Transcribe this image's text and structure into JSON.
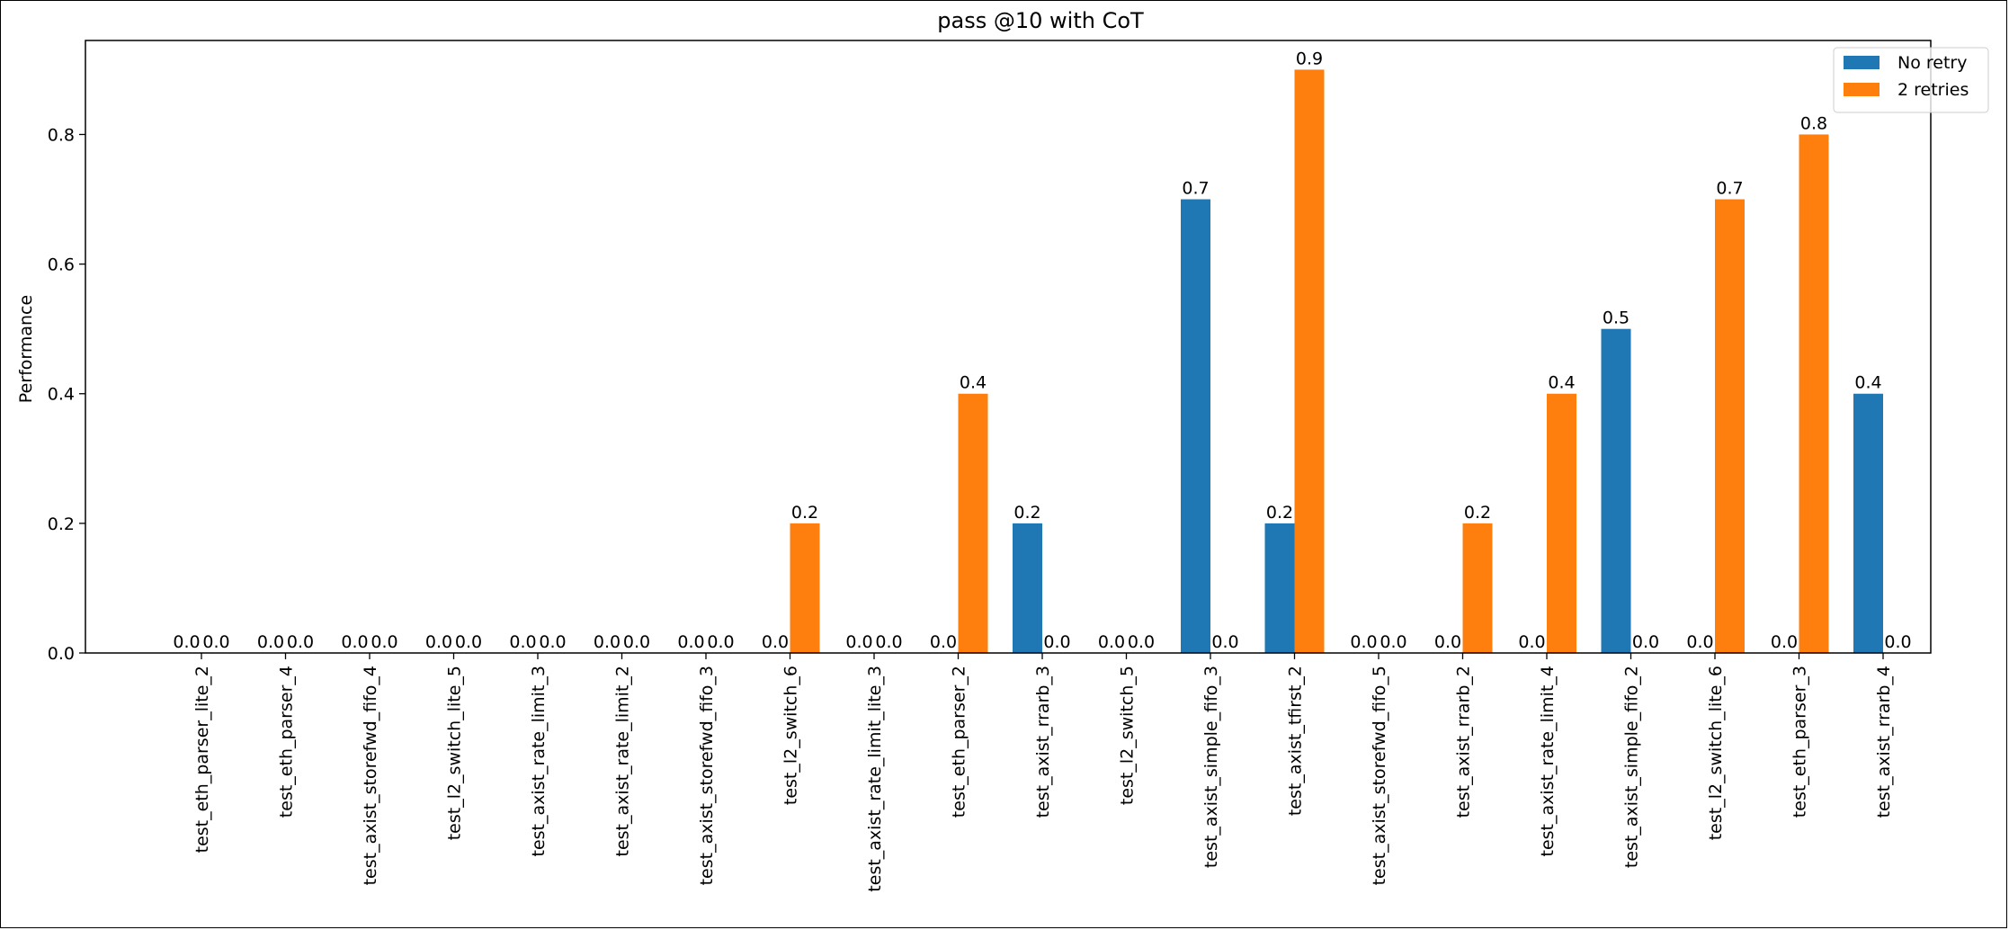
{
  "chart_data": {
    "type": "bar",
    "title": "pass @10 with CoT",
    "xlabel": "",
    "ylabel": "Performance",
    "ylim": [
      0.0,
      0.945
    ],
    "yticks": [
      "0.0",
      "0.2",
      "0.4",
      "0.6",
      "0.8"
    ],
    "grid": false,
    "legend_position": "top-right",
    "categories": [
      "test_eth_parser_lite_2",
      "test_eth_parser_4",
      "test_axist_storefwd_fifo_4",
      "test_l2_switch_lite_5",
      "test_axist_rate_limit_3",
      "test_axist_rate_limit_2",
      "test_axist_storefwd_fifo_3",
      "test_l2_switch_6",
      "test_axist_rate_limit_lite_3",
      "test_eth_parser_2",
      "test_axist_rrarb_3",
      "test_l2_switch_5",
      "test_axist_simple_fifo_3",
      "test_axist_tfirst_2",
      "test_axist_storefwd_fifo_5",
      "test_axist_rrarb_2",
      "test_axist_rate_limit_4",
      "test_axist_simple_fifo_2",
      "test_l2_switch_lite_6",
      "test_eth_parser_3",
      "test_axist_rrarb_4"
    ],
    "series": [
      {
        "name": "No retry",
        "color": "#1f77b4",
        "values": [
          0.0,
          0.0,
          0.0,
          0.0,
          0.0,
          0.0,
          0.0,
          0.0,
          0.0,
          0.0,
          0.2,
          0.0,
          0.7,
          0.2,
          0.0,
          0.0,
          0.0,
          0.5,
          0.0,
          0.0,
          0.4
        ]
      },
      {
        "name": " 2 retries",
        "color": "#ff7f0e",
        "values": [
          0.0,
          0.0,
          0.0,
          0.0,
          0.0,
          0.0,
          0.0,
          0.2,
          0.0,
          0.4,
          0.0,
          0.0,
          0.0,
          0.9,
          0.0,
          0.2,
          0.4,
          0.0,
          0.7,
          0.8,
          0.0
        ]
      }
    ]
  }
}
